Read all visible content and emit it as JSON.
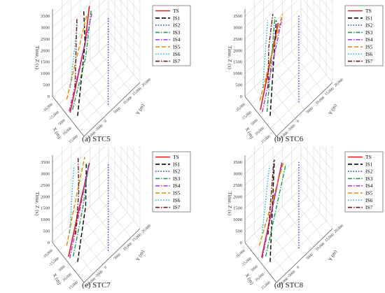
{
  "figure": {
    "legend_entries": [
      "TS",
      "IS1",
      "IS2",
      "IS3",
      "IS4",
      "IS5",
      "IS6",
      "IS7"
    ],
    "series_colors": {
      "TS": "#e41a1c",
      "IS1": "#000000",
      "IS2": "#1f49d1",
      "IS3": "#1a9e4a",
      "IS4": "#a23be0",
      "IS5": "#e08a00",
      "IS6": "#1fb3d1",
      "IS7": "#6b1a1a"
    },
    "series_styles": {
      "TS": "solid",
      "IS1": "dash",
      "IS2": "dot",
      "IS3": "dashdot",
      "IS4": "dashdot",
      "IS5": "dash",
      "IS6": "dot",
      "IS7": "dashdot"
    },
    "axis_labels": {
      "z": "Time, Z (s)",
      "x": "X (m)",
      "y": "Y (m)"
    },
    "z_ticks": [
      "0",
      "500",
      "1000",
      "1500",
      "2000",
      "2500",
      "3000",
      "3500"
    ],
    "x_ticks": [
      "-10,000",
      "-15,000",
      "5000",
      "10,000",
      "15,000"
    ],
    "y_ticks": [
      "-10,000",
      "-5000",
      "0",
      "5000",
      "10,000",
      "15,000",
      "20,000"
    ]
  },
  "chart_data": [
    {
      "type": "line",
      "caption": "(a) STC5",
      "zlim": [
        0,
        3500
      ],
      "series": [
        {
          "name": "TS",
          "points": [
            [
              0.47,
              0.05,
              0
            ],
            [
              0.49,
              0.2,
              1500
            ],
            [
              0.5,
              0.3,
              2500
            ],
            [
              0.46,
              0.4,
              3800
            ]
          ]
        },
        {
          "name": "IS1",
          "points": [
            [
              0.62,
              0.1,
              0
            ],
            [
              0.5,
              0.3,
              2500
            ],
            [
              0.46,
              0.3,
              3800
            ]
          ]
        },
        {
          "name": "IS2",
          "points": [
            [
              0.88,
              0.5,
              0
            ],
            [
              0.88,
              0.5,
              3800
            ]
          ]
        },
        {
          "name": "IS3",
          "points": [
            [
              0.46,
              0.1,
              0
            ],
            [
              0.52,
              0.3,
              1900
            ],
            [
              0.55,
              0.38,
              3800
            ]
          ]
        },
        {
          "name": "IS4",
          "points": [
            [
              0.44,
              0.05,
              0
            ],
            [
              0.54,
              0.4,
              3600
            ]
          ]
        },
        {
          "name": "IS5",
          "points": [
            [
              0.24,
              0.12,
              0
            ],
            [
              0.46,
              0.35,
              3500
            ]
          ]
        },
        {
          "name": "IS6",
          "points": [
            [
              0.12,
              0.25,
              0
            ],
            [
              0.44,
              0.2,
              3600
            ]
          ]
        },
        {
          "name": "IS7",
          "points": [
            [
              0.18,
              0.3,
              0
            ],
            [
              0.42,
              0.2,
              3700
            ]
          ]
        }
      ]
    },
    {
      "type": "line",
      "caption": "(b) STC6",
      "zlim": [
        0,
        3500
      ],
      "series": [
        {
          "name": "TS",
          "points": [
            [
              0.4,
              0.05,
              0
            ],
            [
              0.52,
              0.3,
              3400
            ]
          ]
        },
        {
          "name": "IS1",
          "points": [
            [
              0.62,
              0.1,
              0
            ],
            [
              0.46,
              0.3,
              3400
            ]
          ]
        },
        {
          "name": "IS2",
          "points": [
            [
              0.82,
              0.5,
              0
            ],
            [
              0.82,
              0.5,
              3800
            ]
          ]
        },
        {
          "name": "IS3",
          "points": [
            [
              0.52,
              0.1,
              0
            ],
            [
              0.42,
              0.3,
              3500
            ]
          ]
        },
        {
          "name": "IS4",
          "points": [
            [
              0.46,
              0.05,
              0
            ],
            [
              0.56,
              0.35,
              3600
            ]
          ]
        },
        {
          "name": "IS5",
          "points": [
            [
              0.26,
              0.12,
              0
            ],
            [
              0.48,
              0.4,
              3500
            ]
          ]
        },
        {
          "name": "IS6",
          "points": [
            [
              0.12,
              0.25,
              0
            ],
            [
              0.4,
              0.18,
              3600
            ]
          ]
        },
        {
          "name": "IS7",
          "points": [
            [
              0.2,
              0.3,
              0
            ],
            [
              0.22,
              0.3,
              1800
            ],
            [
              0.35,
              0.3,
              3500
            ]
          ]
        }
      ]
    },
    {
      "type": "line",
      "caption": "(e) STC7",
      "zlim": [
        0,
        3500
      ],
      "series": [
        {
          "name": "TS",
          "points": [
            [
              0.42,
              0.05,
              0
            ],
            [
              0.44,
              0.2,
              1500
            ],
            [
              0.55,
              0.35,
              3600
            ]
          ]
        },
        {
          "name": "IS1",
          "points": [
            [
              0.62,
              0.1,
              0
            ],
            [
              0.52,
              0.3,
              1800
            ],
            [
              0.54,
              0.3,
              3700
            ]
          ]
        },
        {
          "name": "IS2",
          "points": [
            [
              0.88,
              0.5,
              0
            ],
            [
              0.88,
              0.5,
              3800
            ]
          ]
        },
        {
          "name": "IS3",
          "points": [
            [
              0.48,
              0.1,
              0
            ],
            [
              0.48,
              0.28,
              1800
            ],
            [
              0.52,
              0.35,
              3500
            ]
          ]
        },
        {
          "name": "IS4",
          "points": [
            [
              0.46,
              0.05,
              0
            ],
            [
              0.55,
              0.35,
              3600
            ]
          ]
        },
        {
          "name": "IS5",
          "points": [
            [
              0.24,
              0.12,
              0
            ],
            [
              0.3,
              0.18,
              1200
            ],
            [
              0.4,
              0.35,
              3600
            ]
          ]
        },
        {
          "name": "IS6",
          "points": [
            [
              0.1,
              0.25,
              0
            ],
            [
              0.32,
              0.2,
              3400
            ]
          ]
        },
        {
          "name": "IS7",
          "points": [
            [
              0.2,
              0.3,
              0
            ],
            [
              0.3,
              0.3,
              2000
            ],
            [
              0.28,
              0.3,
              3500
            ]
          ]
        }
      ]
    },
    {
      "type": "line",
      "caption": "(d) STC8",
      "zlim": [
        0,
        3500
      ],
      "series": [
        {
          "name": "TS",
          "points": [
            [
              0.44,
              0.05,
              0
            ],
            [
              0.55,
              0.35,
              3600
            ]
          ]
        },
        {
          "name": "IS1",
          "points": [
            [
              0.62,
              0.1,
              0
            ],
            [
              0.4,
              0.3,
              3600
            ]
          ]
        },
        {
          "name": "IS2",
          "points": [
            [
              0.82,
              0.5,
              0
            ],
            [
              0.82,
              0.5,
              3800
            ]
          ]
        },
        {
          "name": "IS3",
          "points": [
            [
              0.48,
              0.1,
              0
            ],
            [
              0.62,
              0.38,
              3600
            ]
          ]
        },
        {
          "name": "IS4",
          "points": [
            [
              0.46,
              0.05,
              0
            ],
            [
              0.54,
              0.35,
              3600
            ]
          ]
        },
        {
          "name": "IS5",
          "points": [
            [
              0.24,
              0.12,
              0
            ],
            [
              0.52,
              0.4,
              3500
            ]
          ]
        },
        {
          "name": "IS6",
          "points": [
            [
              0.1,
              0.25,
              0
            ],
            [
              0.42,
              0.2,
              3600
            ]
          ]
        },
        {
          "name": "IS7",
          "points": [
            [
              0.2,
              0.3,
              0
            ],
            [
              0.38,
              0.3,
              3500
            ]
          ]
        }
      ]
    }
  ]
}
